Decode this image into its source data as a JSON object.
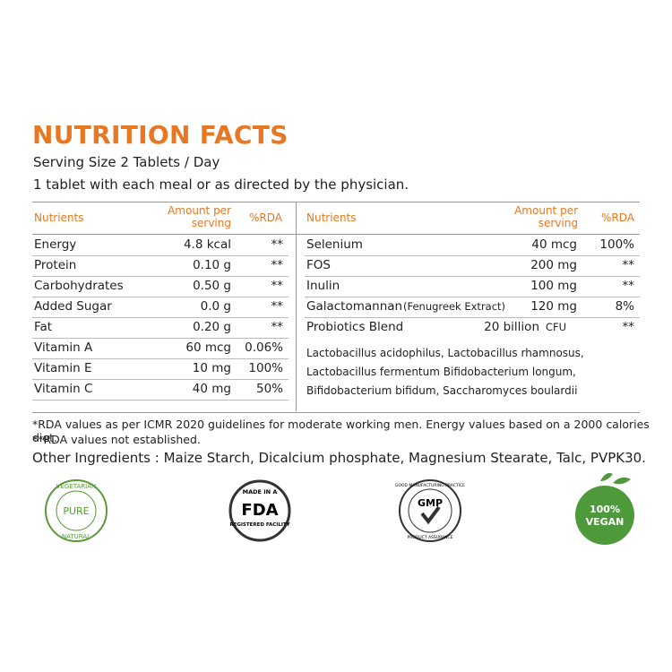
{
  "header": {
    "title": "NUTRITION FACTS",
    "serving": "Serving Size 2 Tablets / Day",
    "directions": "1 tablet with each meal or as directed by the physician."
  },
  "left_table": {
    "headers": [
      "Nutrients",
      "Amount per serving",
      "%RDA"
    ],
    "rows": [
      [
        "Energy",
        "4.8 kcal",
        "**"
      ],
      [
        "Protein",
        "0.10 g",
        "**"
      ],
      [
        "Carbohydrates",
        "0.50 g",
        "**"
      ],
      [
        "Added Sugar",
        "0.0 g",
        "**"
      ],
      [
        "Fat",
        "0.20 g",
        "**"
      ],
      [
        "Vitamin A",
        "60 mcg",
        "0.06%"
      ],
      [
        "Vitamin E",
        "10 mg",
        "100%"
      ],
      [
        "Vitamin C",
        "40 mg",
        "50%"
      ]
    ]
  },
  "right_table": {
    "headers": [
      "Nutrients",
      "Amount per serving",
      "%RDA"
    ],
    "rows": [
      {
        "name": "Selenium",
        "amount": "40 mcg",
        "rda": "100%"
      },
      {
        "name": "FOS",
        "amount": "200 mg",
        "rda": "**"
      },
      {
        "name": "Inulin",
        "amount": "100 mg",
        "rda": "**"
      },
      {
        "name": "Galactomannan",
        "note": "(Fenugreek Extract)",
        "amount": "120 mg",
        "rda": "8%"
      },
      {
        "name": "Probiotics Blend",
        "amount": "20 billion",
        "unit": "CFU",
        "rda": "**"
      }
    ],
    "strains": "Lactobacillus acidophilus, Lactobacillus rhamnosus, Lactobacillus fermentum Bifidobacterium longum, Bifidobacterium bifidum, Saccharomyces boulardii"
  },
  "footnotes": [
    "*RDA values as per ICMR 2020 guidelines for moderate working men. Energy values based on a 2000 calories diet.",
    "**RDA values not established."
  ],
  "other_ingredients": "Other Ingredients : Maize Starch, Dicalcium phosphate, Magnesium Stearate, Talc, PVPK30.",
  "badges": {
    "vegetarian": {
      "top": "VEGETARIAN",
      "center": "PURE",
      "bottom": "NATURAL"
    },
    "fda": {
      "top": "MADE IN A",
      "center": "FDA",
      "bottom": "REGISTERED FACILITY"
    },
    "gmp": {
      "top": "GOOD MANUFACTURING PRACTICE",
      "center": "GMP",
      "bottom": "PRODUCT ASSURANCE"
    },
    "vegan": {
      "top": "100%",
      "bottom": "VEGAN"
    }
  }
}
